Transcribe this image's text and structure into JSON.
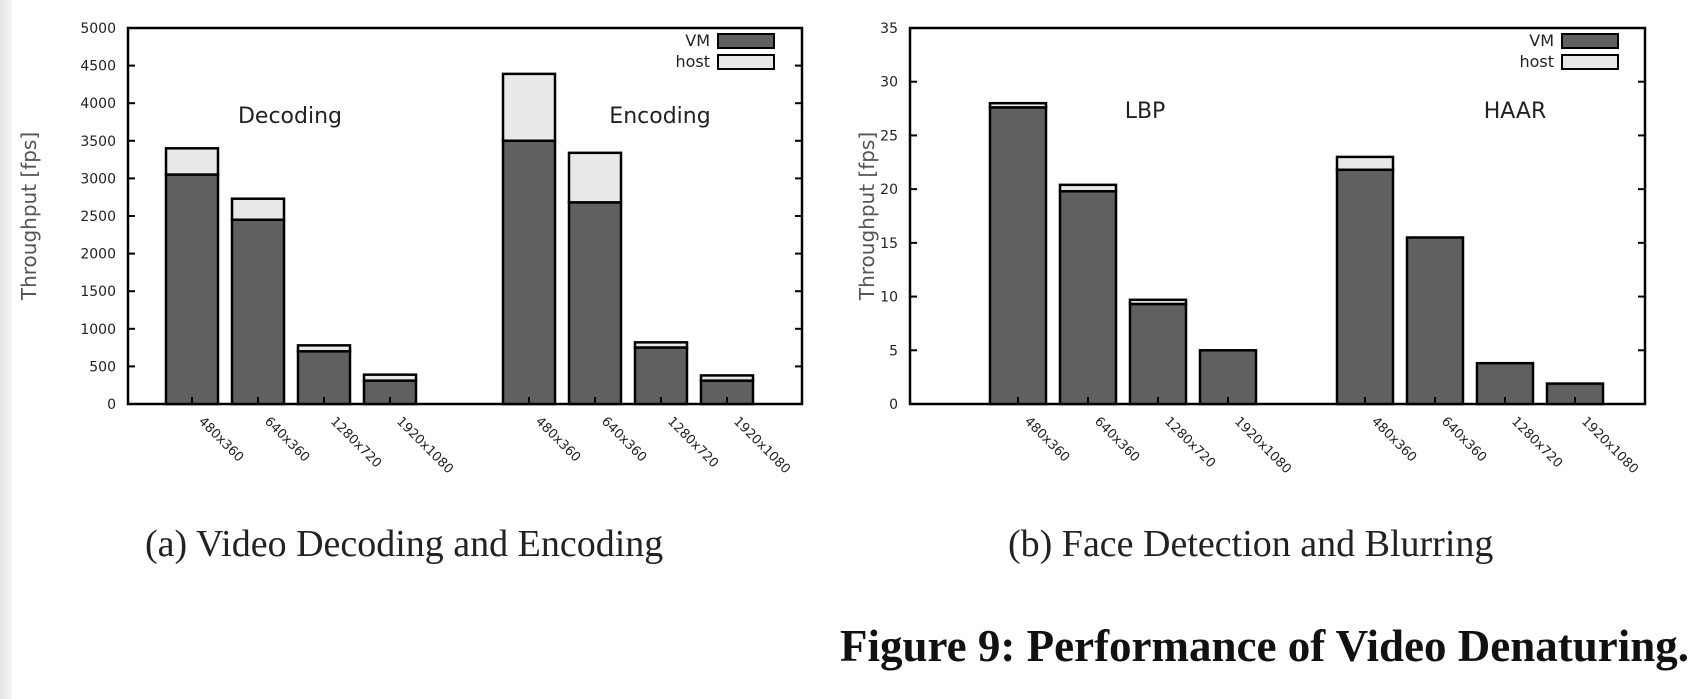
{
  "figure_caption": "Figure 9: Performance of Video Denaturing.",
  "colors": {
    "vm": "#606060",
    "host": "#e8e8e8",
    "stroke": "#000000"
  },
  "chart_data": [
    {
      "id": "a",
      "type": "bar",
      "stacked": true,
      "caption": "(a) Video Decoding and Encoding",
      "ylabel": "Throughput [fps]",
      "ylim": [
        0,
        5000
      ],
      "yticks": [
        0,
        500,
        1000,
        1500,
        2000,
        2500,
        3000,
        3500,
        4000,
        4500,
        5000
      ],
      "legend": {
        "position": "top-right",
        "entries": [
          "VM",
          "host"
        ]
      },
      "groups": [
        {
          "label": "Decoding",
          "categories": [
            "480x360",
            "640x360",
            "1280x720",
            "1920x1080"
          ],
          "vm": [
            3050,
            2450,
            700,
            310
          ],
          "host": [
            3400,
            2730,
            780,
            390
          ]
        },
        {
          "label": "Encoding",
          "categories": [
            "480x360",
            "640x360",
            "1280x720",
            "1920x1080"
          ],
          "vm": [
            3500,
            2680,
            750,
            310
          ],
          "host": [
            4390,
            3340,
            820,
            380
          ]
        }
      ]
    },
    {
      "id": "b",
      "type": "bar",
      "stacked": true,
      "caption": "(b) Face Detection and Blurring",
      "ylabel": "Throughput [fps]",
      "ylim": [
        0,
        35
      ],
      "yticks": [
        0,
        5,
        10,
        15,
        20,
        25,
        30,
        35
      ],
      "legend": {
        "position": "top-right",
        "entries": [
          "VM",
          "host"
        ]
      },
      "groups": [
        {
          "label": "LBP",
          "categories": [
            "480x360",
            "640x360",
            "1280x720",
            "1920x1080"
          ],
          "vm": [
            27.6,
            19.8,
            9.3,
            5.0
          ],
          "host": [
            28.0,
            20.4,
            9.7,
            5.0
          ]
        },
        {
          "label": "HAAR",
          "categories": [
            "480x360",
            "640x360",
            "1280x720",
            "1920x1080"
          ],
          "vm": [
            21.8,
            15.5,
            3.8,
            1.9
          ],
          "host": [
            23.0,
            15.5,
            3.8,
            1.9
          ]
        }
      ]
    }
  ]
}
